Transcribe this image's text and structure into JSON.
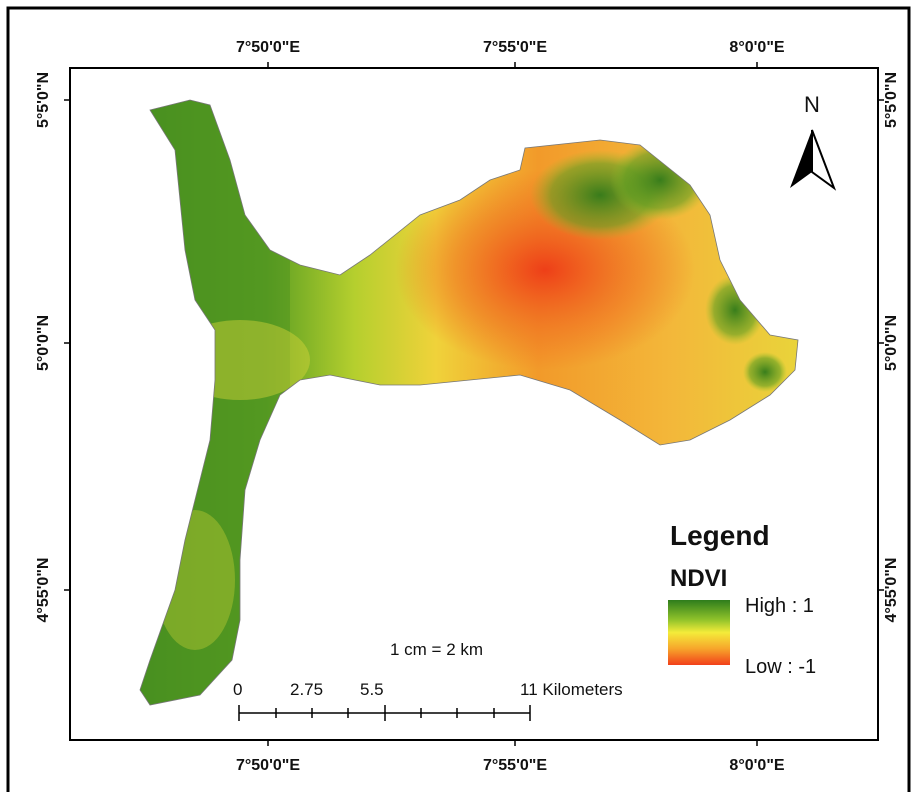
{
  "map": {
    "top_labels": [
      "7°50'0\"E",
      "7°55'0\"E",
      "8°0'0\"E"
    ],
    "bottom_labels": [
      "7°50'0\"E",
      "7°55'0\"E",
      "8°0'0\"E"
    ],
    "left_labels": [
      "5°5'0\"N",
      "5°0'0\"N",
      "4°55'0\"N"
    ],
    "right_labels": [
      "5°5'0\"N",
      "5°0'0\"N",
      "4°55'0\"N"
    ],
    "north": "N",
    "legend": {
      "title": "Legend",
      "subtitle": "NDVI",
      "high": "High : 1",
      "low": "Low : -1"
    },
    "scale": {
      "text": "1 cm = 2 km",
      "labels": [
        "0",
        "2.75",
        "5.5",
        "11 Kilometers"
      ]
    }
  }
}
